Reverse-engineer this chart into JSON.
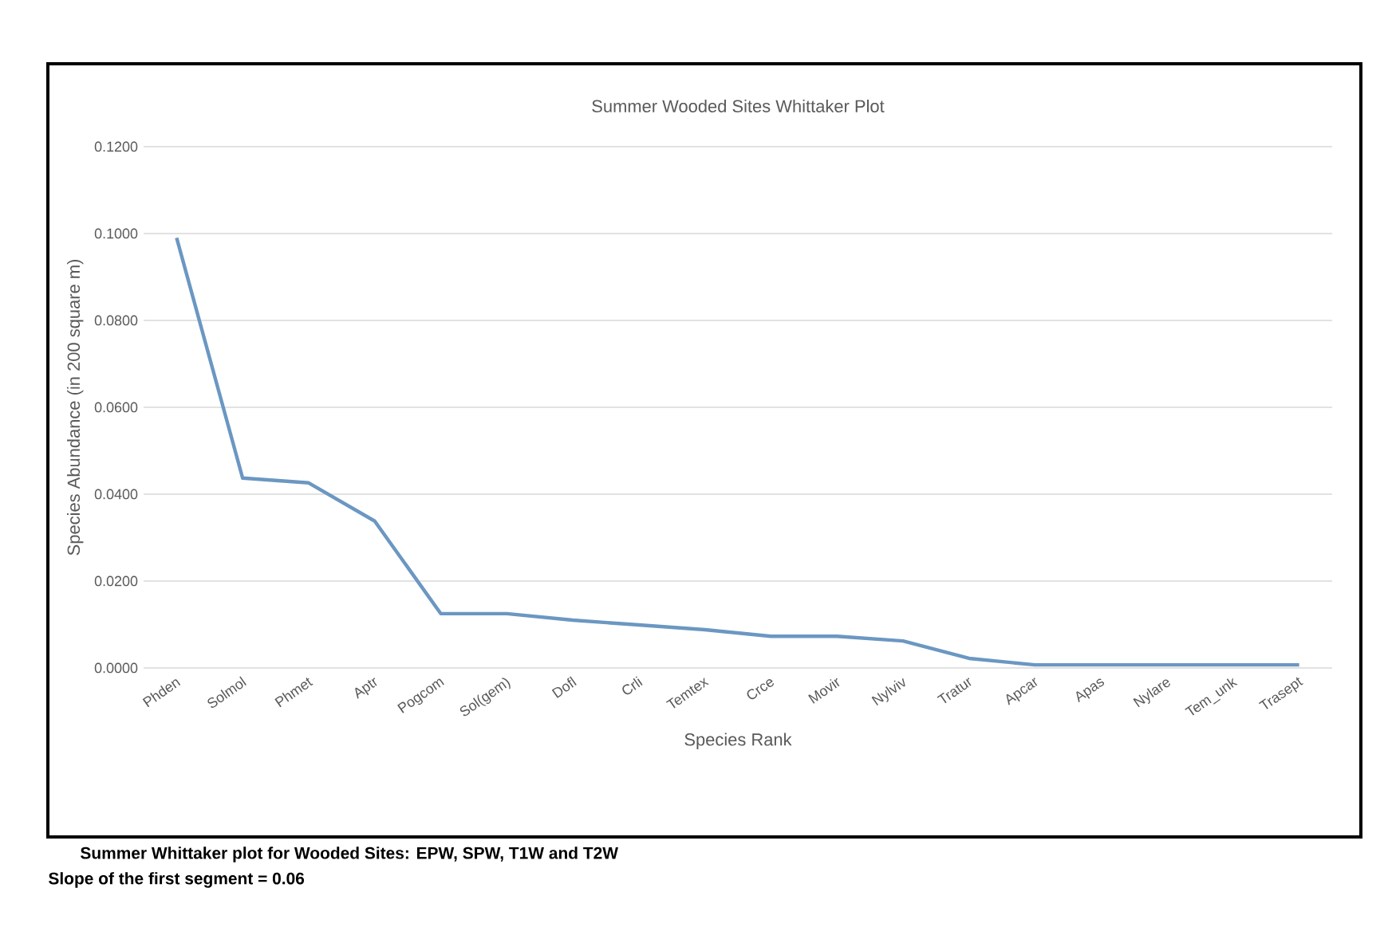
{
  "chart_data": {
    "type": "line",
    "title": "Summer Wooded Sites Whittaker Plot",
    "xlabel": "Species Rank",
    "ylabel": "Species Abundance  (in 200 square m)",
    "categories": [
      "Phden",
      "Solmol",
      "Phmet",
      "Aptr",
      "Pogcom",
      "Sol(gem)",
      "Dofl",
      "Crli",
      "Temtex",
      "Crce",
      "Movir",
      "Nylviv",
      "Tratur",
      "Apcar",
      "Apas",
      "Nylare",
      "Tem_unk",
      "Trasept"
    ],
    "series": [
      {
        "color": "#6b97c2",
        "values": [
          0.099,
          0.0437,
          0.0426,
          0.0338,
          0.0125,
          0.0125,
          0.011,
          0.0099,
          0.0088,
          0.0073,
          0.0073,
          0.0062,
          0.0022,
          0.0007,
          0.0007,
          0.0007,
          0.0007,
          0.0007
        ]
      }
    ],
    "ylim": [
      0,
      0.12
    ],
    "yticks": [
      {
        "value": 0,
        "label": "0.0000"
      },
      {
        "value": 0.02,
        "label": "0.0200"
      },
      {
        "value": 0.04,
        "label": "0.0400"
      },
      {
        "value": 0.06,
        "label": "0.0600"
      },
      {
        "value": 0.08,
        "label": "0.0800"
      },
      {
        "value": 0.1,
        "label": "0.1000"
      },
      {
        "value": 0.12,
        "label": "0.1200"
      }
    ],
    "grid": "y",
    "marker": "none",
    "line_style": "solid",
    "annotations": [
      "Summer Whittaker plot for Wooded Sites: EPW, SPW, T1W and T2W",
      "Slope of the first segment = 0.06"
    ]
  }
}
